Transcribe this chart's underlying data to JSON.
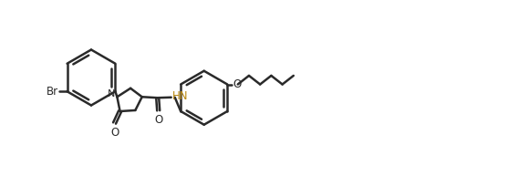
{
  "background_color": "#ffffff",
  "line_color": "#2a2a2a",
  "bond_width": 1.8,
  "text_color": "#2a2a2a",
  "hn_color": "#b8860b",
  "br_label": "Br",
  "n_label": "N",
  "o_label": "O",
  "hn_label": "HN",
  "figsize": [
    5.68,
    1.93
  ],
  "dpi": 100,
  "xlim": [
    0,
    5.68
  ],
  "ylim": [
    0,
    1.93
  ]
}
